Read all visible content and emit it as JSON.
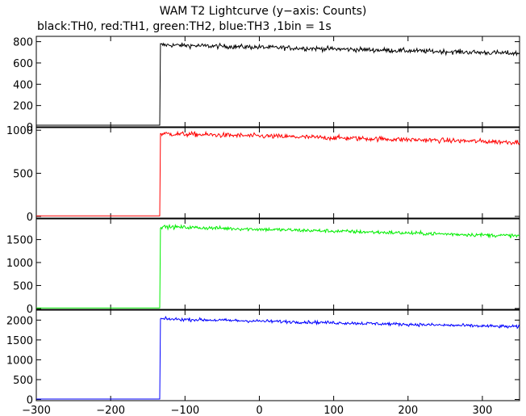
{
  "chart_data": {
    "type": "line",
    "title": "WAM T2 Lightcurve (y−axis: Counts)",
    "subtitle": "black:TH0, red:TH1, green:TH2, blue:TH3 ,1bin = 1s",
    "xlim": [
      -300,
      350
    ],
    "x_ticks": [
      -300,
      -200,
      -100,
      0,
      100,
      200,
      300
    ],
    "x_tick_labels": [
      "−300",
      "−200",
      "−100",
      "0",
      "100",
      "200",
      "300"
    ],
    "grid": false,
    "panels": [
      {
        "name": "TH0",
        "color": "#000000",
        "ylim": [
          0,
          850
        ],
        "y_ticks": [
          0,
          200,
          400,
          600,
          800
        ],
        "pre_level": 15,
        "step_x": -133,
        "post_start": 770,
        "post_end": 690,
        "noise": 22
      },
      {
        "name": "TH1",
        "color": "#ff0000",
        "ylim": [
          -20,
          1030
        ],
        "y_ticks": [
          0,
          500,
          1000
        ],
        "pre_level": 5,
        "step_x": -133,
        "post_start": 960,
        "post_end": 860,
        "noise": 28
      },
      {
        "name": "TH2",
        "color": "#00ee00",
        "ylim": [
          -20,
          1950
        ],
        "y_ticks": [
          0,
          500,
          1000,
          1500
        ],
        "pre_level": 10,
        "step_x": -133,
        "post_start": 1780,
        "post_end": 1580,
        "noise": 40
      },
      {
        "name": "TH3",
        "color": "#0000ff",
        "ylim": [
          -30,
          2250
        ],
        "y_ticks": [
          0,
          500,
          1000,
          1500,
          2000
        ],
        "pre_level": 10,
        "step_x": -133,
        "post_start": 2030,
        "post_end": 1830,
        "noise": 40
      }
    ]
  }
}
